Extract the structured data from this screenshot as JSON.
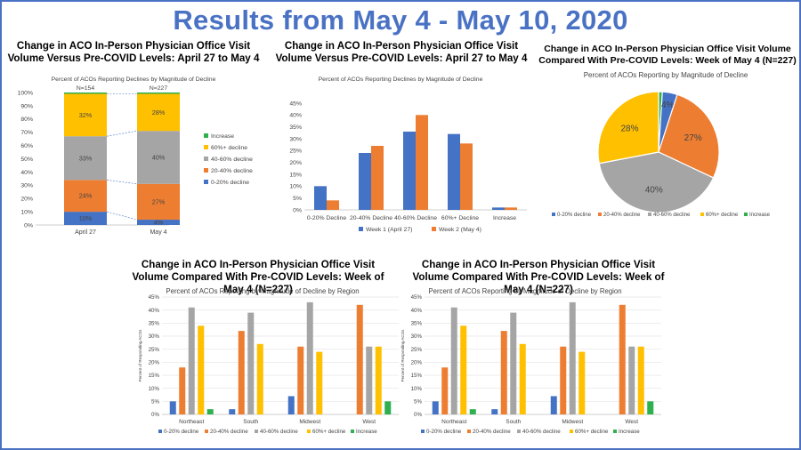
{
  "header": {
    "title": "Results from May 4 - May 10, 2020"
  },
  "colors": {
    "c0_20": "#4472c4",
    "c20_40": "#ed7d31",
    "c40_60": "#a5a5a5",
    "c60p": "#ffc000",
    "increase": "#2eb04f",
    "frame": "#4a72c4"
  },
  "chart_data": [
    {
      "id": "stacked",
      "type": "bar",
      "stacked": true,
      "title": "Change in ACO In-Person Physician Office Visit Volume Versus Pre-COVID Levels: April 27 to May 4",
      "subtitle": "Percent of ACOs Reporting Declines by Magnitude of Decline",
      "categories": [
        "April 27",
        "May 4"
      ],
      "category_n": [
        "N=154",
        "N=227"
      ],
      "ylim": [
        0,
        100
      ],
      "yticks": [
        "0%",
        "10%",
        "20%",
        "30%",
        "40%",
        "50%",
        "60%",
        "70%",
        "80%",
        "90%",
        "100%"
      ],
      "series": [
        {
          "name": "0-20% decline",
          "values": [
            10,
            4
          ],
          "labels": [
            "10%",
            "4%"
          ],
          "color": "#4472c4"
        },
        {
          "name": "20-40% decline",
          "values": [
            24,
            27
          ],
          "labels": [
            "24%",
            "27%"
          ],
          "color": "#ed7d31"
        },
        {
          "name": "40-60% decline",
          "values": [
            33,
            40
          ],
          "labels": [
            "33%",
            "40%"
          ],
          "color": "#a5a5a5"
        },
        {
          "name": "60%+ decline",
          "values": [
            32,
            28
          ],
          "labels": [
            "32%",
            "28%"
          ],
          "color": "#ffc000"
        },
        {
          "name": "Increase",
          "values": [
            1,
            1
          ],
          "labels": [
            "",
            ""
          ],
          "color": "#2eb04f"
        }
      ],
      "legend": [
        "Increase",
        "60%+ decline",
        "40-60% decline",
        "20-40% decline",
        "0-20% decline"
      ],
      "legend_position": "right"
    },
    {
      "id": "grouped",
      "type": "bar",
      "title": "Change in ACO In-Person Physician Office Visit Volume Versus Pre-COVID Levels: April 27 to May 4",
      "subtitle": "Percent of ACOs Reporting Declines by Magnitude of Decline",
      "categories": [
        "0-20% Decline",
        "20-40% Decline",
        "40-60% Decline",
        "60%+ Decline",
        "Increase"
      ],
      "ylim": [
        0,
        45
      ],
      "yticks": [
        "0%",
        "5%",
        "10%",
        "15%",
        "20%",
        "25%",
        "30%",
        "35%",
        "40%",
        "45%"
      ],
      "series": [
        {
          "name": "Week 1 (April 27)",
          "values": [
            10,
            24,
            33,
            32,
            1
          ],
          "color": "#4472c4"
        },
        {
          "name": "Week 2 (May 4)",
          "values": [
            4,
            27,
            40,
            28,
            1
          ],
          "color": "#ed7d31"
        }
      ],
      "legend_position": "bottom"
    },
    {
      "id": "pie",
      "type": "pie",
      "title": "Change in ACO In-Person Physician Office Visit Volume Compared With Pre-COVID Levels: Week of May 4 (N=227)",
      "subtitle": "Percent of ACOs Reporting by Magnitude of Decline",
      "slices": [
        {
          "name": "Increase",
          "value": 1,
          "label": "",
          "color": "#2eb04f"
        },
        {
          "name": "0-20% decline",
          "value": 4,
          "label": "4%",
          "color": "#4472c4"
        },
        {
          "name": "20-40% decline",
          "value": 27,
          "label": "27%",
          "color": "#ed7d31"
        },
        {
          "name": "40-60% decline",
          "value": 40,
          "label": "40%",
          "color": "#a5a5a5"
        },
        {
          "name": "60%+ decline",
          "value": 28,
          "label": "28%",
          "color": "#ffc000"
        }
      ],
      "legend": [
        "0-20% decline",
        "20-40% decline",
        "40-60% decline",
        "60%+ decline",
        "Increase"
      ],
      "legend_position": "bottom"
    },
    {
      "id": "region_left",
      "type": "bar",
      "title": "Change in ACO In-Person Physician Office Visit Volume Compared With Pre-COVID Levels: Week of May 4 (N=227)",
      "subtitle": "Percent of ACOs Reporting by Magnitude of Decline by Region",
      "ylabel": "Percent of Responding ACOs",
      "categories": [
        "Northeast",
        "South",
        "Midwest",
        "West"
      ],
      "ylim": [
        0,
        45
      ],
      "yticks": [
        "0%",
        "5%",
        "10%",
        "15%",
        "20%",
        "25%",
        "30%",
        "35%",
        "40%",
        "45%"
      ],
      "series": [
        {
          "name": "0-20% decline",
          "values": [
            5,
            2,
            7,
            0
          ],
          "color": "#4472c4"
        },
        {
          "name": "20-40% decline",
          "values": [
            18,
            32,
            26,
            42
          ],
          "color": "#ed7d31"
        },
        {
          "name": "40-60% decline",
          "values": [
            41,
            39,
            43,
            26
          ],
          "color": "#a5a5a5"
        },
        {
          "name": "60%+ decline",
          "values": [
            34,
            27,
            24,
            26
          ],
          "color": "#ffc000"
        },
        {
          "name": "Increase",
          "values": [
            2,
            0,
            0,
            5
          ],
          "color": "#2eb04f"
        }
      ],
      "legend_position": "bottom"
    },
    {
      "id": "region_right",
      "type": "bar",
      "title": "Change in ACO In-Person Physician Office Visit Volume Compared With Pre-COVID Levels: Week of May 4 (N=227)",
      "subtitle": "Percent of ACOs Reporting by Magnitude of Decline by Region",
      "ylabel": "Percent of Responding ACOs",
      "categories": [
        "Northeast",
        "South",
        "Midwest",
        "West"
      ],
      "ylim": [
        0,
        45
      ],
      "yticks": [
        "0%",
        "5%",
        "10%",
        "15%",
        "20%",
        "25%",
        "30%",
        "35%",
        "40%",
        "45%"
      ],
      "series": [
        {
          "name": "0-20% decline",
          "values": [
            5,
            2,
            7,
            0
          ],
          "color": "#4472c4"
        },
        {
          "name": "20-40% decline",
          "values": [
            18,
            32,
            26,
            42
          ],
          "color": "#ed7d31"
        },
        {
          "name": "40-60% decline",
          "values": [
            41,
            39,
            43,
            26
          ],
          "color": "#a5a5a5"
        },
        {
          "name": "60%+ decline",
          "values": [
            34,
            27,
            24,
            26
          ],
          "color": "#ffc000"
        },
        {
          "name": "Increase",
          "values": [
            2,
            0,
            0,
            5
          ],
          "color": "#2eb04f"
        }
      ],
      "legend_position": "bottom"
    }
  ]
}
